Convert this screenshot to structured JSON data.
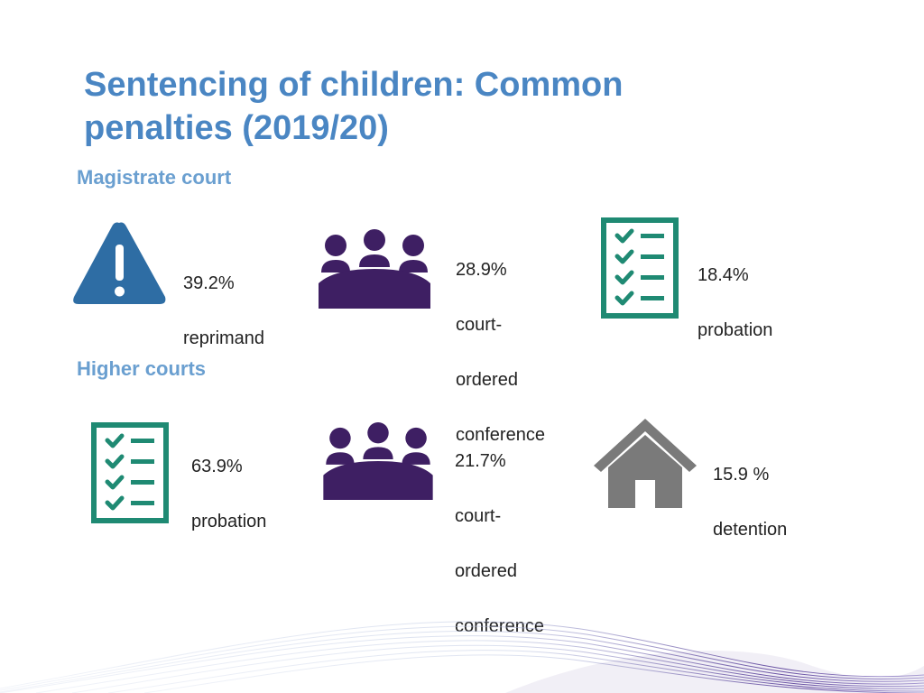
{
  "title": "Sentencing of children: Common penalties (2019/20)",
  "colors": {
    "title": "#4a86c3",
    "section": "#6a9fd0",
    "warning": "#2e6da4",
    "people": "#3e1f63",
    "checklist": "#1f8a73",
    "house": "#7a7a7a"
  },
  "sections": [
    {
      "heading": "Magistrate court",
      "items": [
        {
          "icon": "warning-icon",
          "lines": [
            "39.2%",
            "reprimand"
          ]
        },
        {
          "icon": "people-icon",
          "lines": [
            "28.9%",
            "court-",
            "ordered",
            "conference"
          ]
        },
        {
          "icon": "checklist-icon",
          "lines": [
            "18.4%",
            "probation"
          ]
        }
      ]
    },
    {
      "heading": "Higher courts",
      "items": [
        {
          "icon": "checklist-icon",
          "lines": [
            "63.9%",
            "probation"
          ]
        },
        {
          "icon": "people-icon",
          "lines": [
            "21.7%",
            "court-",
            "ordered",
            "conference"
          ]
        },
        {
          "icon": "house-icon",
          "lines": [
            "15.9 %",
            "detention"
          ]
        }
      ]
    }
  ]
}
